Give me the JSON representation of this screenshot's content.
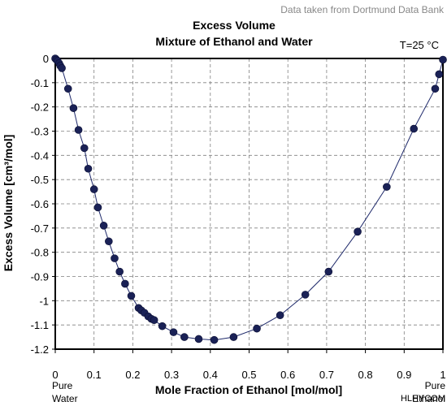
{
  "source_note": "Data taken from Dortmund Data Bank",
  "temperature_note": "T=25 °C",
  "end_labels": {
    "left": [
      "Pure",
      "Water"
    ],
    "right": [
      "Pure",
      "Ethanol"
    ]
  },
  "watermark": "HLHYCOM",
  "colors": {
    "grid": "#808080",
    "series": "#1f2a6b",
    "marker": "#1a2156"
  },
  "chart_data": {
    "type": "scatter",
    "title": "Excess Volume",
    "subtitle": "Mixture of Ethanol and Water",
    "xlabel": "Mole Fraction of Ethanol [mol/mol]",
    "ylabel": "Excess Volume [cm³/mol]",
    "xlim": [
      0,
      1
    ],
    "ylim": [
      -1.2,
      0
    ],
    "x_ticks": [
      "0",
      "0.1",
      "0.2",
      "0.3",
      "0.4",
      "0.5",
      "0.6",
      "0.7",
      "0.8",
      "0.9",
      "1"
    ],
    "y_ticks": [
      "0",
      "-0.1",
      "-0.2",
      "-0.3",
      "-0.4",
      "-0.5",
      "-0.6",
      "-0.7",
      "-0.8",
      "-0.9",
      "-1",
      "-1.1",
      "-1.2"
    ],
    "grid": true,
    "points": [
      {
        "x": 0.0,
        "y": 0.0
      },
      {
        "x": 0.003,
        "y": -0.005
      },
      {
        "x": 0.006,
        "y": -0.01
      },
      {
        "x": 0.01,
        "y": -0.02
      },
      {
        "x": 0.013,
        "y": -0.03
      },
      {
        "x": 0.017,
        "y": -0.04
      },
      {
        "x": 0.033,
        "y": -0.125
      },
      {
        "x": 0.047,
        "y": -0.205
      },
      {
        "x": 0.06,
        "y": -0.295
      },
      {
        "x": 0.075,
        "y": -0.37
      },
      {
        "x": 0.085,
        "y": -0.455
      },
      {
        "x": 0.1,
        "y": -0.54
      },
      {
        "x": 0.11,
        "y": -0.615
      },
      {
        "x": 0.125,
        "y": -0.69
      },
      {
        "x": 0.138,
        "y": -0.755
      },
      {
        "x": 0.153,
        "y": -0.825
      },
      {
        "x": 0.166,
        "y": -0.88
      },
      {
        "x": 0.18,
        "y": -0.93
      },
      {
        "x": 0.196,
        "y": -0.98
      },
      {
        "x": 0.215,
        "y": -1.03
      },
      {
        "x": 0.222,
        "y": -1.04
      },
      {
        "x": 0.23,
        "y": -1.05
      },
      {
        "x": 0.24,
        "y": -1.065
      },
      {
        "x": 0.248,
        "y": -1.075
      },
      {
        "x": 0.255,
        "y": -1.08
      },
      {
        "x": 0.276,
        "y": -1.105
      },
      {
        "x": 0.305,
        "y": -1.13
      },
      {
        "x": 0.333,
        "y": -1.15
      },
      {
        "x": 0.37,
        "y": -1.158
      },
      {
        "x": 0.41,
        "y": -1.162
      },
      {
        "x": 0.46,
        "y": -1.15
      },
      {
        "x": 0.52,
        "y": -1.115
      },
      {
        "x": 0.58,
        "y": -1.06
      },
      {
        "x": 0.645,
        "y": -0.975
      },
      {
        "x": 0.705,
        "y": -0.88
      },
      {
        "x": 0.78,
        "y": -0.715
      },
      {
        "x": 0.855,
        "y": -0.53
      },
      {
        "x": 0.925,
        "y": -0.29
      },
      {
        "x": 0.98,
        "y": -0.125
      },
      {
        "x": 0.99,
        "y": -0.065
      },
      {
        "x": 1.0,
        "y": -0.005
      }
    ]
  }
}
